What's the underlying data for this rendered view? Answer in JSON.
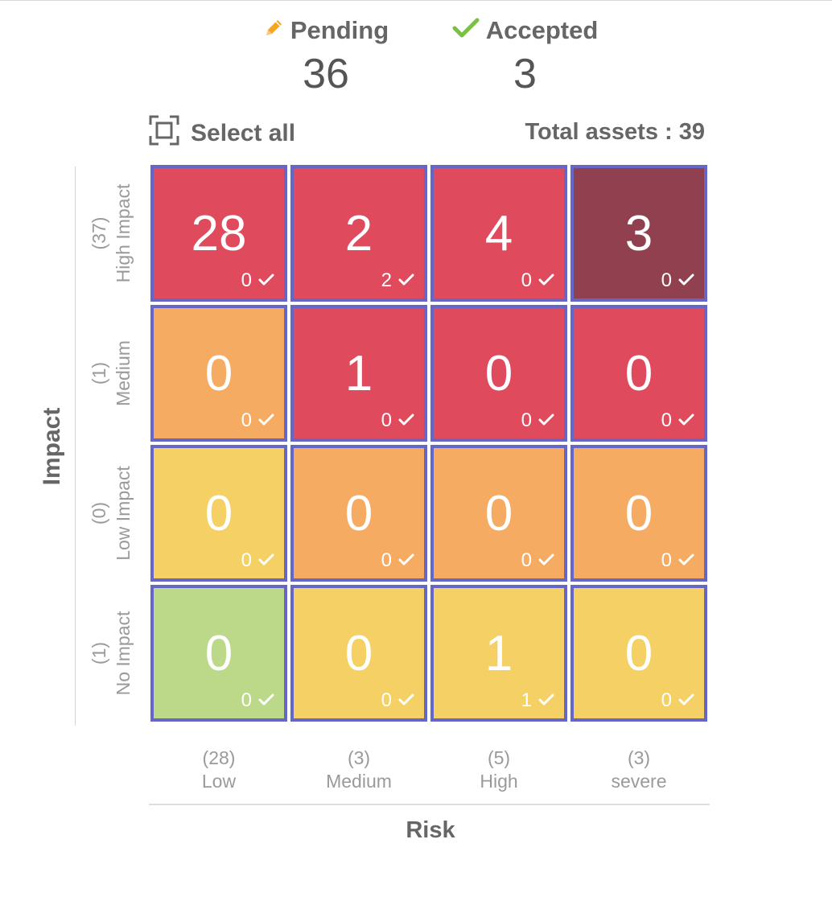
{
  "summary": {
    "pending": {
      "label": "Pending",
      "count": "36",
      "icon": "pencil-icon",
      "icon_color": "#f5a623"
    },
    "accepted": {
      "label": "Accepted",
      "count": "3",
      "icon": "check-icon",
      "icon_color": "#7ac142"
    }
  },
  "select_all_label": "Select all",
  "total_assets": "Total assets : 39",
  "y_axis_title": "Impact",
  "x_axis_title": "Risk",
  "rows": [
    {
      "count": "(37)",
      "label": "High Impact"
    },
    {
      "count": "(1)",
      "label": "Medium"
    },
    {
      "count": "(0)",
      "label": "Low Impact"
    },
    {
      "count": "(1)",
      "label": "No Impact"
    }
  ],
  "columns": [
    {
      "count": "(28)",
      "label": "Low"
    },
    {
      "count": "(3)",
      "label": "Medium"
    },
    {
      "count": "(5)",
      "label": "High"
    },
    {
      "count": "(3)",
      "label": "severe"
    }
  ],
  "colors": {
    "red": "#df4a5c",
    "dark_red": "#90404f",
    "orange": "#f6ab63",
    "yellow": "#f5d064",
    "green": "#bbd989",
    "border": "#6666c6"
  },
  "cells": [
    [
      {
        "value": "28",
        "accepted": "0",
        "color": "#df4a5c"
      },
      {
        "value": "2",
        "accepted": "2",
        "color": "#df4a5c"
      },
      {
        "value": "4",
        "accepted": "0",
        "color": "#df4a5c"
      },
      {
        "value": "3",
        "accepted": "0",
        "color": "#90404f"
      }
    ],
    [
      {
        "value": "0",
        "accepted": "0",
        "color": "#f6ab63"
      },
      {
        "value": "1",
        "accepted": "0",
        "color": "#df4a5c"
      },
      {
        "value": "0",
        "accepted": "0",
        "color": "#df4a5c"
      },
      {
        "value": "0",
        "accepted": "0",
        "color": "#df4a5c"
      }
    ],
    [
      {
        "value": "0",
        "accepted": "0",
        "color": "#f5d064"
      },
      {
        "value": "0",
        "accepted": "0",
        "color": "#f6ab63"
      },
      {
        "value": "0",
        "accepted": "0",
        "color": "#f6ab63"
      },
      {
        "value": "0",
        "accepted": "0",
        "color": "#f6ab63"
      }
    ],
    [
      {
        "value": "0",
        "accepted": "0",
        "color": "#bbd989"
      },
      {
        "value": "0",
        "accepted": "0",
        "color": "#f5d064"
      },
      {
        "value": "1",
        "accepted": "1",
        "color": "#f5d064"
      },
      {
        "value": "0",
        "accepted": "0",
        "color": "#f5d064"
      }
    ]
  ]
}
